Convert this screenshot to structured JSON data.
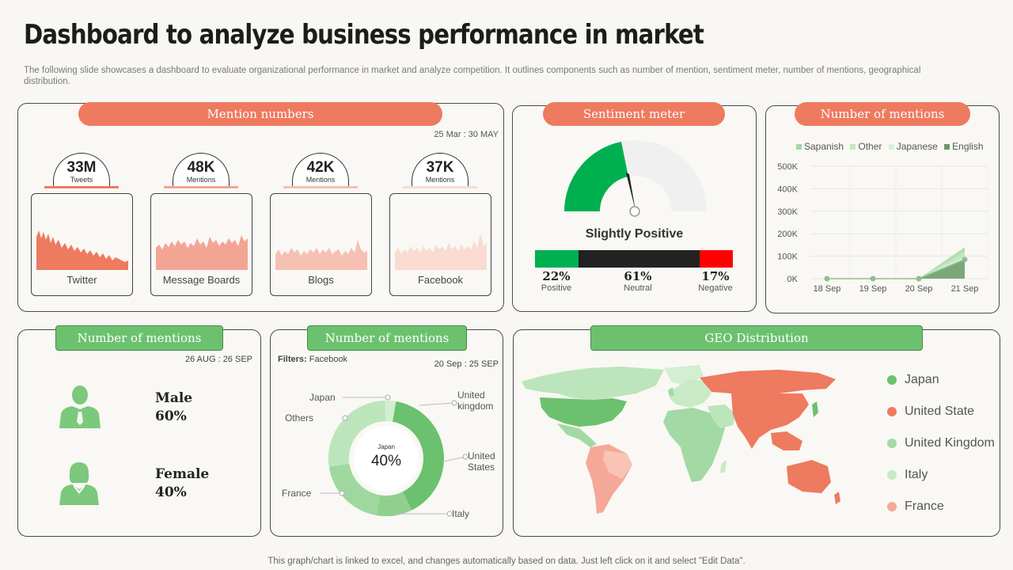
{
  "header": {
    "title": "Dashboard to analyze business performance in market",
    "subtitle": "The following slide showcases a dashboard to evaluate organizational performance in market and analyze competition. It outlines components such as number of mention, sentiment meter, number of mentions, geographical distribution."
  },
  "mention_numbers": {
    "title": "Mention numbers",
    "date_range": "25 Mar : 30 MAY",
    "cards": [
      {
        "value": "33M",
        "unit": "Tweets",
        "label": "Twitter",
        "color": "#ee7a5f"
      },
      {
        "value": "48K",
        "unit": "Mentions",
        "label": "Message Boards",
        "color": "#f3a594"
      },
      {
        "value": "42K",
        "unit": "Mentions",
        "label": "Blogs",
        "color": "#f6c0b2"
      },
      {
        "value": "37K",
        "unit": "Mentions",
        "label": "Facebook",
        "color": "#f9dbd2"
      }
    ]
  },
  "sentiment": {
    "title": "Sentiment meter",
    "status": "Slightly Positive",
    "bars": [
      {
        "pct": "22%",
        "label": "Positive",
        "value": 22,
        "color": "#00b050"
      },
      {
        "pct": "61%",
        "label": "Neutral",
        "value": 61,
        "color": "#222222"
      },
      {
        "pct": "17%",
        "label": "Negative",
        "value": 17,
        "color": "#ff0000"
      }
    ]
  },
  "mentions_chart": {
    "title": "Number of mentions",
    "chart_data": {
      "type": "area",
      "x": [
        "18 Sep",
        "19 Sep",
        "20 Sep",
        "21 Sep"
      ],
      "series": [
        {
          "name": "Sapanish",
          "values": [
            0,
            0,
            0,
            140000
          ],
          "color": "#a3d9a5"
        },
        {
          "name": "Other",
          "values": [
            0,
            0,
            0,
            120000
          ],
          "color": "#c4e8c4"
        },
        {
          "name": "Japanese",
          "values": [
            0,
            0,
            0,
            100000
          ],
          "color": "#d9f0d6"
        },
        {
          "name": "English",
          "values": [
            0,
            0,
            0,
            85000
          ],
          "color": "#6b9a6b"
        }
      ],
      "yticks": [
        "0K",
        "100K",
        "200K",
        "300K",
        "400K",
        "500K"
      ],
      "ylim": [
        0,
        500000
      ]
    }
  },
  "gender": {
    "title": "Number of mentions",
    "date_range": "26 AUG : 26 SEP",
    "male_label": "Male",
    "male_pct": "60%",
    "female_label": "Female",
    "female_pct": "40%"
  },
  "donut": {
    "title": "Number of mentions",
    "filter_label": "Filters:",
    "filter_value": "Facebook",
    "date_range": "20 Sep : 25 SEP",
    "center_label": "Japan",
    "center_value": "40%",
    "segments": [
      {
        "name": "Japan",
        "value": 40,
        "color": "#6cc16e"
      },
      {
        "name": "Italy",
        "value": 10,
        "color": "#8fd08f"
      },
      {
        "name": "France",
        "value": 20,
        "color": "#9fd89e"
      },
      {
        "name": "Others",
        "value": 27,
        "color": "#bde5bb"
      },
      {
        "name": "United kingdom",
        "value": 3,
        "color": "#d3eed1"
      }
    ],
    "labels": {
      "japan": "Japan",
      "others": "Others",
      "france": "France",
      "uk": "United kingdom",
      "us": "United States",
      "italy": "Italy"
    }
  },
  "geo": {
    "title": "GEO Distribution",
    "legend": [
      {
        "label": "Japan",
        "color": "#6cc16e"
      },
      {
        "label": "United State",
        "color": "#ee7a5f"
      },
      {
        "label": "United Kingdom",
        "color": "#a3d9a5"
      },
      {
        "label": "Italy",
        "color": "#c8ebc6"
      },
      {
        "label": "France",
        "color": "#f5a898"
      }
    ]
  },
  "footer": "This graph/chart is linked to excel,  and changes automatically based on data. Just left click on it and select \"Edit Data\"."
}
